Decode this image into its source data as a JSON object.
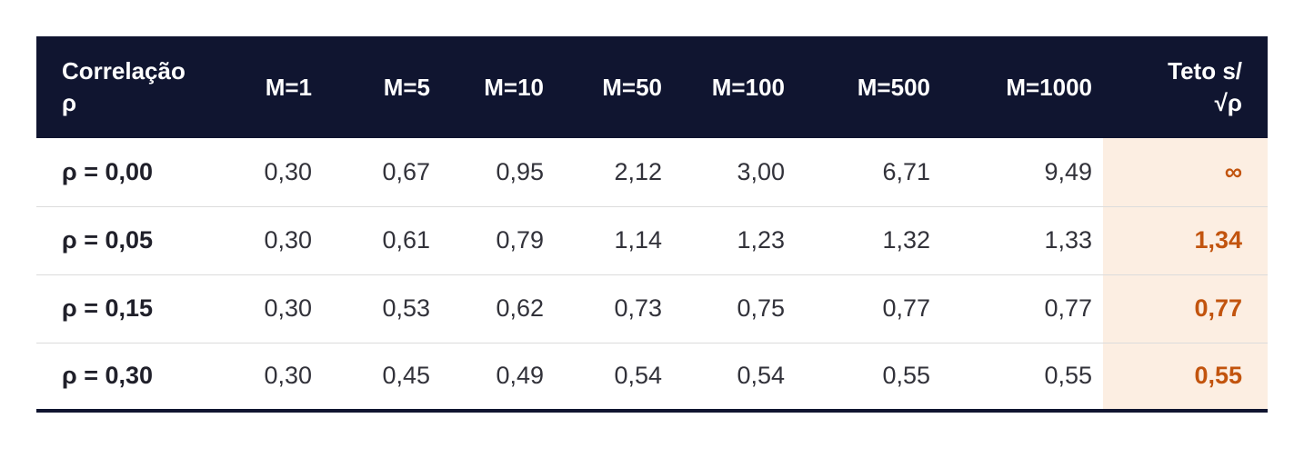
{
  "chart_data": {
    "type": "table",
    "title": "",
    "columns": [
      "Correlação ρ",
      "M=1",
      "M=5",
      "M=10",
      "M=50",
      "M=100",
      "M=500",
      "M=1000",
      "Teto s/ √ρ"
    ],
    "rows": [
      [
        "ρ = 0,00",
        "0,30",
        "0,67",
        "0,95",
        "2,12",
        "3,00",
        "6,71",
        "9,49",
        "∞"
      ],
      [
        "ρ = 0,05",
        "0,30",
        "0,61",
        "0,79",
        "1,14",
        "1,23",
        "1,32",
        "1,33",
        "1,34"
      ],
      [
        "ρ = 0,15",
        "0,30",
        "0,53",
        "0,62",
        "0,73",
        "0,75",
        "0,77",
        "0,77",
        "0,77"
      ],
      [
        "ρ = 0,30",
        "0,30",
        "0,45",
        "0,49",
        "0,54",
        "0,54",
        "0,55",
        "0,55",
        "0,55"
      ]
    ],
    "layout_hints": {
      "header_style": "dark navy band, white bold text",
      "last_column_style": "peach highlight with bold orange values",
      "grid": "horizontal light dividers between data rows, thick navy bottom border"
    }
  },
  "table": {
    "headers": [
      {
        "label": "Correlação\nρ"
      },
      {
        "label": "M=1"
      },
      {
        "label": "M=5"
      },
      {
        "label": "M=10"
      },
      {
        "label": "M=50"
      },
      {
        "label": "M=100"
      },
      {
        "label": "M=500"
      },
      {
        "label": "M=1000"
      },
      {
        "label": "Teto s/\n√ρ"
      }
    ],
    "rows": [
      {
        "label": "ρ = 0,00",
        "values": [
          "0,30",
          "0,67",
          "0,95",
          "2,12",
          "3,00",
          "6,71",
          "9,49"
        ],
        "ceiling": "∞"
      },
      {
        "label": "ρ = 0,05",
        "values": [
          "0,30",
          "0,61",
          "0,79",
          "1,14",
          "1,23",
          "1,32",
          "1,33"
        ],
        "ceiling": "1,34"
      },
      {
        "label": "ρ = 0,15",
        "values": [
          "0,30",
          "0,53",
          "0,62",
          "0,73",
          "0,75",
          "0,77",
          "0,77"
        ],
        "ceiling": "0,77"
      },
      {
        "label": "ρ = 0,30",
        "values": [
          "0,30",
          "0,45",
          "0,49",
          "0,54",
          "0,54",
          "0,55",
          "0,55"
        ],
        "ceiling": "0,55"
      }
    ]
  },
  "colors": {
    "header_bg": "#101530",
    "header_text": "#ffffff",
    "row_divider": "#dcdcdc",
    "highlight_bg": "#fceee2",
    "highlight_text": "#c2540e",
    "label_text": "#20202a",
    "value_text": "#32323a"
  }
}
